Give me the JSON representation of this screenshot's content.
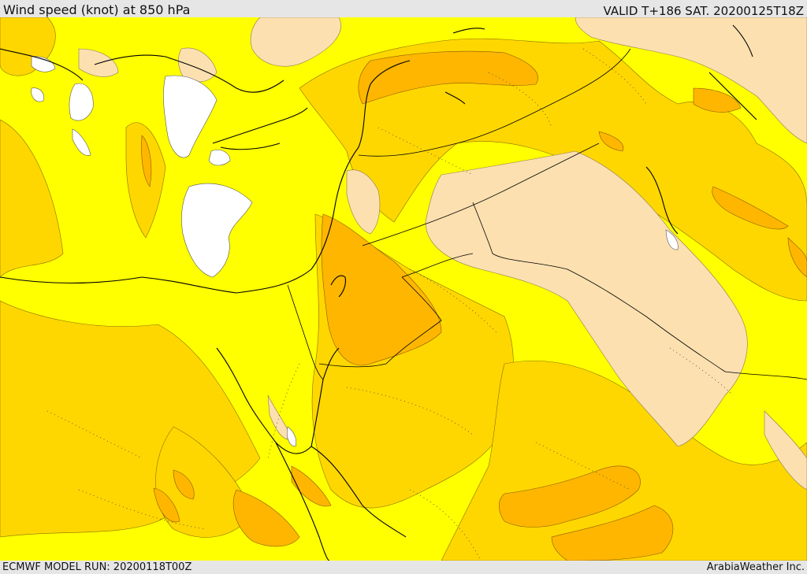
{
  "header": {
    "title": "Wind speed (knot) at 850 hPa",
    "valid": "VALID T+186 SAT. 20200125T18Z"
  },
  "footer": {
    "model_run": "ECMWF MODEL RUN: 20200118T00Z",
    "credit": "ArabiaWeather Inc."
  },
  "map": {
    "colors": {
      "calm": "#ffffff",
      "light": "#ffff00",
      "moderate": "#ffd700",
      "fresh": "#ffb600",
      "strong": "#f59a00",
      "land_neutral": "#fde0b0",
      "coastline": "#000000",
      "border": "#000000"
    }
  }
}
